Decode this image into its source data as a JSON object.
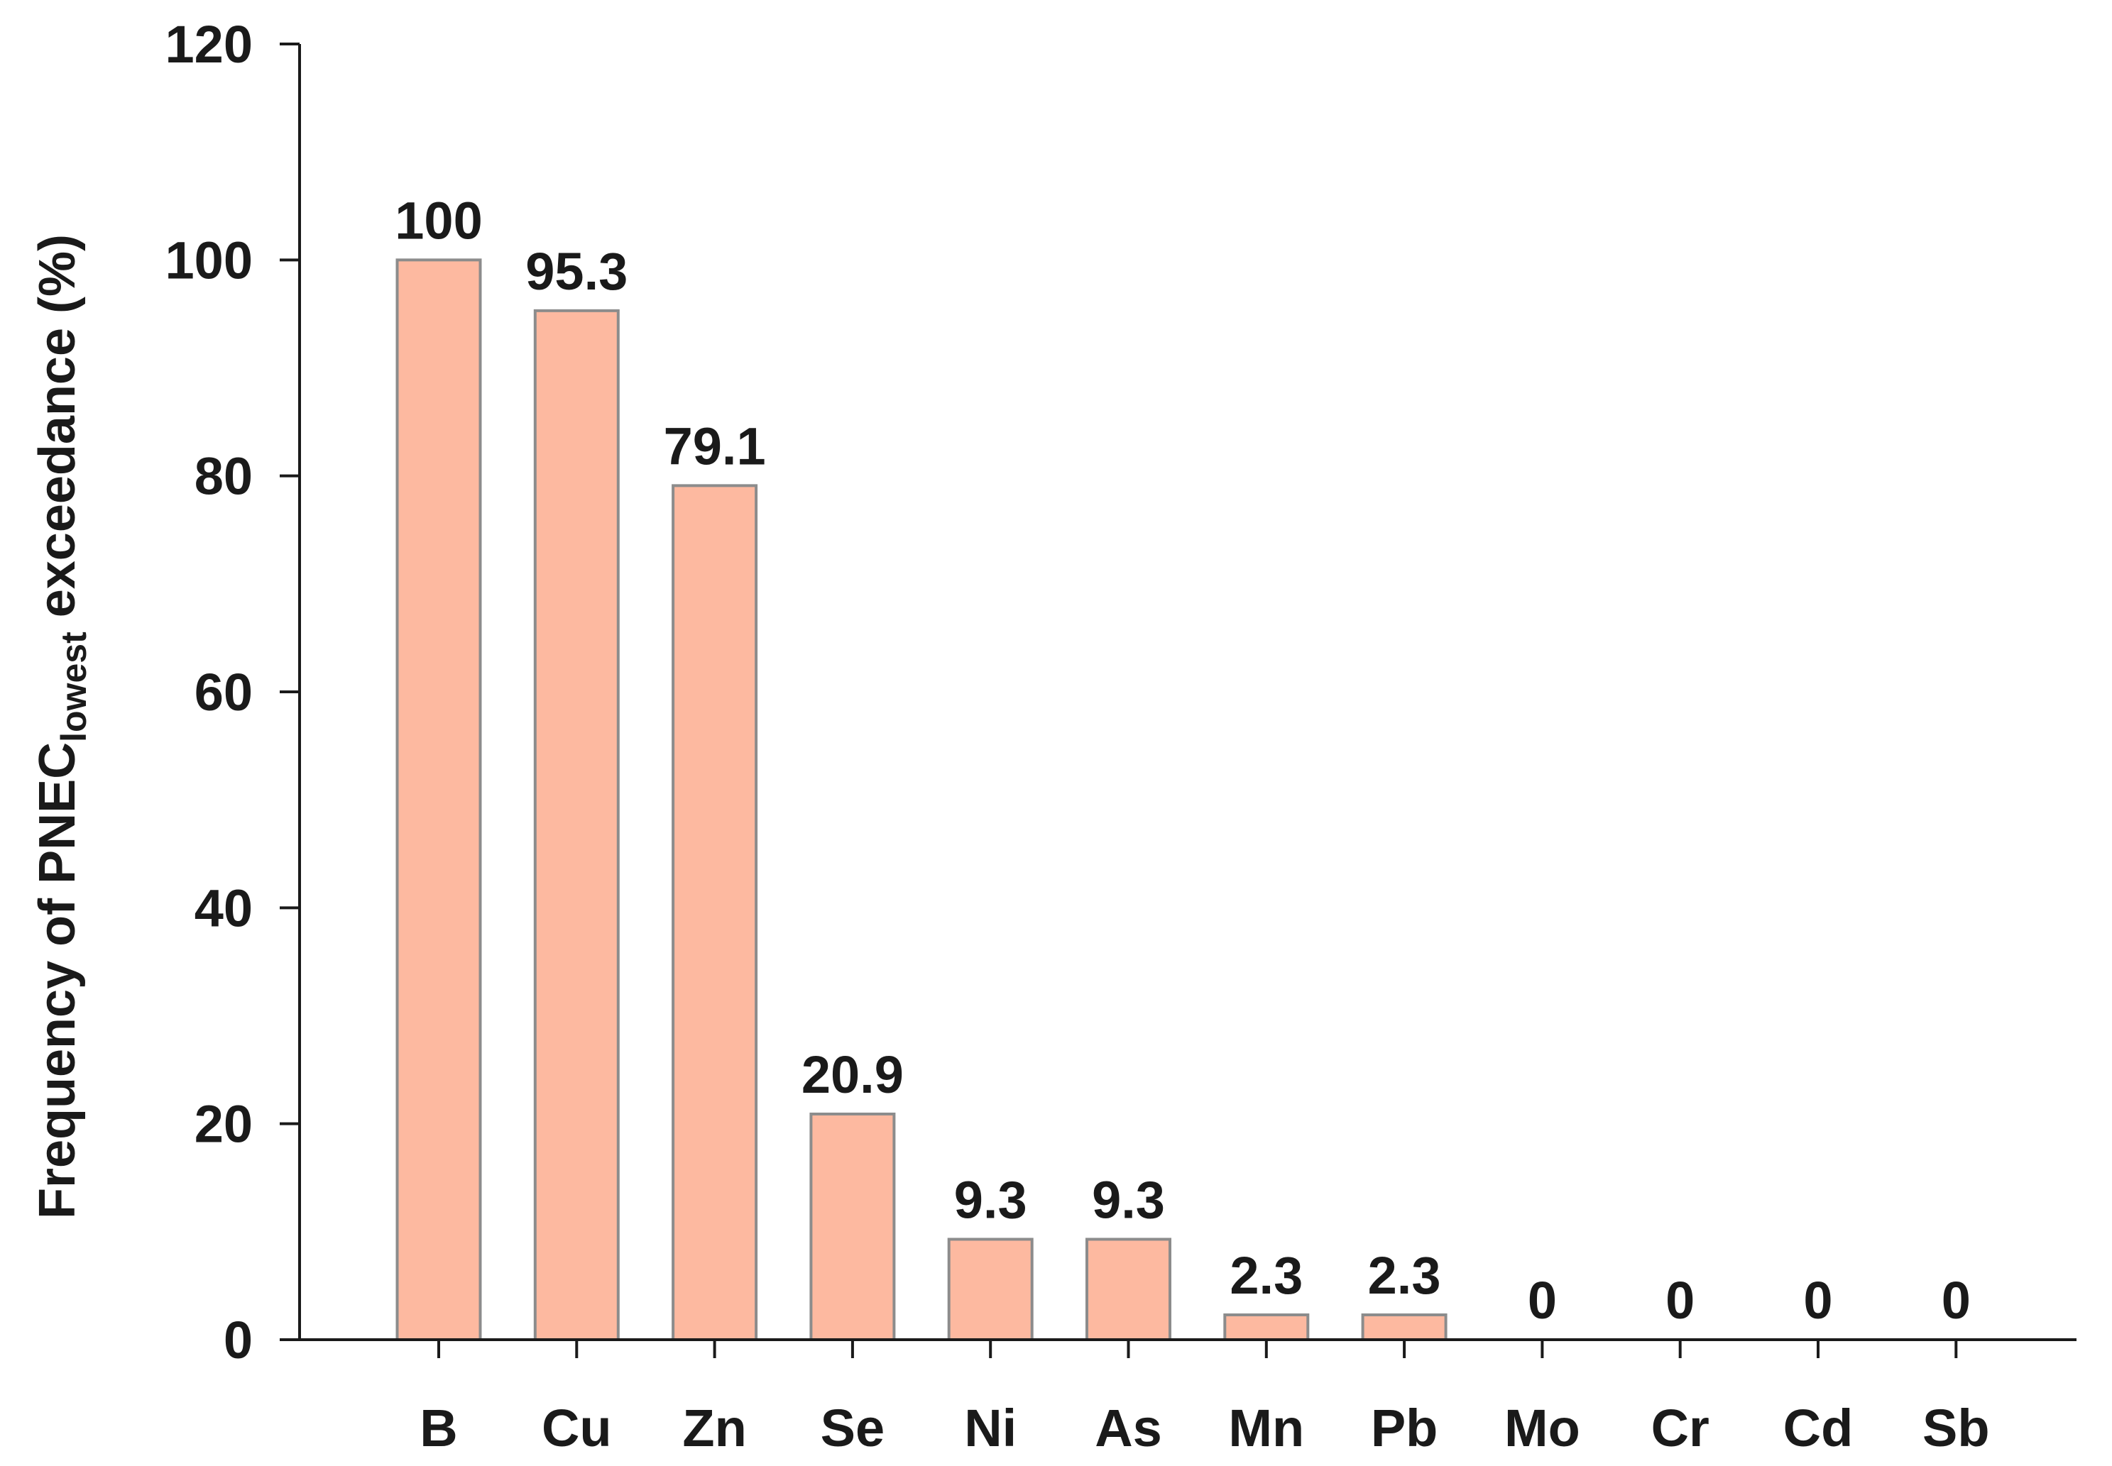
{
  "chart_data": {
    "type": "bar",
    "categories": [
      "B",
      "Cu",
      "Zn",
      "Se",
      "Ni",
      "As",
      "Mn",
      "Pb",
      "Mo",
      "Cr",
      "Cd",
      "Sb"
    ],
    "values": [
      100,
      95.3,
      79.1,
      20.9,
      9.3,
      9.3,
      2.3,
      2.3,
      0,
      0,
      0,
      0
    ],
    "data_labels": [
      "100",
      "95.3",
      "79.1",
      "20.9",
      "9.3",
      "9.3",
      "2.3",
      "2.3",
      "0",
      "0",
      "0",
      "0"
    ],
    "ylabel": {
      "prefix": "Frequency of PNEC",
      "subscript": "lowest",
      "suffix": " exceedance (%)"
    },
    "xlabel": "",
    "ylim": [
      0,
      120
    ],
    "yticks": [
      0,
      20,
      40,
      60,
      80,
      100,
      120
    ],
    "grid": false,
    "bar_color": "#FDB9A0",
    "bar_edge_color": "#8C8C8C",
    "text_color": "#1a1a1a"
  }
}
